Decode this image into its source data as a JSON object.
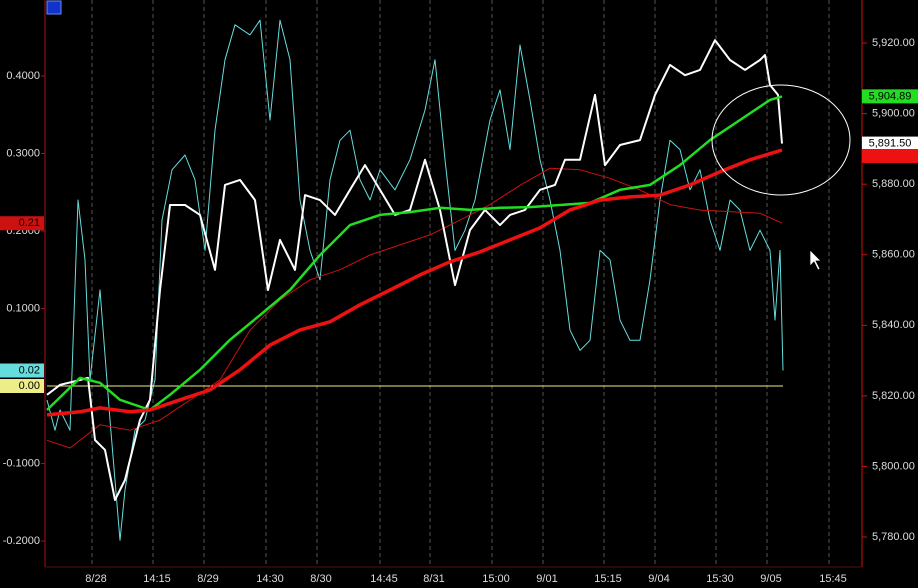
{
  "chart_data": {
    "type": "line",
    "xlim": [
      0,
      817
    ],
    "ylim": [
      -0.2335,
      0.498
    ],
    "y2lim": [
      5771.5,
      5932.2
    ],
    "grid": true,
    "xticks": [
      {
        "value": 47,
        "label": "8/28"
      },
      {
        "value": 108,
        "label": "14:15"
      },
      {
        "value": 159,
        "label": "8/29"
      },
      {
        "value": 221,
        "label": "14:30"
      },
      {
        "value": 272,
        "label": "8/30"
      },
      {
        "value": 335,
        "label": "14:45"
      },
      {
        "value": 385,
        "label": "8/31"
      },
      {
        "value": 447,
        "label": "15:00"
      },
      {
        "value": 498,
        "label": "9/01"
      },
      {
        "value": 559,
        "label": "15:15"
      },
      {
        "value": 610,
        "label": "9/04"
      },
      {
        "value": 671,
        "label": "15:30"
      },
      {
        "value": 722,
        "label": "9/05"
      },
      {
        "value": 784,
        "label": "15:45"
      }
    ],
    "yticks": [
      {
        "value": -0.2,
        "label": "-0.2000"
      },
      {
        "value": -0.1,
        "label": "-0.1000"
      },
      {
        "value": 0.1,
        "label": "0.1000"
      },
      {
        "value": 0.2,
        "label": "0.2000"
      },
      {
        "value": 0.3,
        "label": "0.3000"
      },
      {
        "value": 0.4,
        "label": "0.4000"
      }
    ],
    "y2ticks": [
      {
        "value": 5780,
        "label": "5,780.00"
      },
      {
        "value": 5800,
        "label": "5,800.00"
      },
      {
        "value": 5820,
        "label": "5,820.00"
      },
      {
        "value": 5840,
        "label": "5,840.00"
      },
      {
        "value": 5860,
        "label": "5,860.00"
      },
      {
        "value": 5880,
        "label": "5,880.00"
      },
      {
        "value": 5900,
        "label": "5,900.00"
      },
      {
        "value": 5920,
        "label": "5,920.00"
      }
    ],
    "series": [
      {
        "color": "#66dddd",
        "width": 1,
        "end_label": "0.02",
        "x": [
          2,
          10,
          15,
          25,
          33,
          40,
          45,
          55,
          65,
          75,
          80,
          90,
          100,
          110,
          117,
          127,
          140,
          150,
          160,
          170,
          180,
          190,
          205,
          215,
          225,
          235,
          245,
          255,
          265,
          275,
          285,
          295,
          305,
          315,
          325,
          335,
          350,
          365,
          380,
          390,
          400,
          410,
          420,
          430,
          445,
          455,
          465,
          475,
          485,
          495,
          505,
          515,
          525,
          535,
          545,
          555,
          565,
          575,
          585,
          595,
          605,
          615,
          625,
          635,
          645,
          655,
          665,
          675,
          685,
          695,
          705,
          715,
          725,
          730,
          735,
          738
        ],
        "values": [
          -0.018,
          -0.057,
          -0.031,
          -0.057,
          0.24,
          0.163,
          0.008,
          0.124,
          -0.044,
          -0.199,
          -0.134,
          -0.057,
          -0.044,
          0.008,
          0.214,
          0.279,
          0.298,
          0.266,
          0.175,
          0.33,
          0.421,
          0.466,
          0.453,
          0.472,
          0.343,
          0.472,
          0.421,
          0.24,
          0.175,
          0.137,
          0.266,
          0.317,
          0.33,
          0.266,
          0.24,
          0.279,
          0.253,
          0.292,
          0.356,
          0.421,
          0.292,
          0.175,
          0.201,
          0.24,
          0.343,
          0.382,
          0.305,
          0.44,
          0.369,
          0.292,
          0.24,
          0.175,
          0.072,
          0.046,
          0.059,
          0.175,
          0.163,
          0.085,
          0.059,
          0.059,
          0.137,
          0.24,
          0.317,
          0.305,
          0.253,
          0.279,
          0.214,
          0.175,
          0.24,
          0.227,
          0.175,
          0.201,
          0.175,
          0.085,
          0.175,
          0.02
        ]
      },
      {
        "color": "#eeee88",
        "width": 1,
        "end_label": "0.00",
        "x": [
          2,
          738
        ],
        "values": [
          0,
          0
        ]
      },
      {
        "color": "#cc1111",
        "width": 1,
        "end_label": "0.21",
        "x": [
          2,
          25,
          55,
          85,
          115,
          145,
          175,
          205,
          235,
          265,
          295,
          325,
          355,
          385,
          415,
          445,
          475,
          505,
          535,
          565,
          595,
          625,
          655,
          685,
          715,
          737
        ],
        "values": [
          -0.07,
          -0.08,
          -0.05,
          -0.057,
          -0.044,
          -0.018,
          0.008,
          0.072,
          0.111,
          0.137,
          0.15,
          0.169,
          0.182,
          0.195,
          0.214,
          0.234,
          0.259,
          0.281,
          0.279,
          0.268,
          0.253,
          0.234,
          0.227,
          0.225,
          0.223,
          0.21
        ]
      },
      {
        "color": "#ffffff",
        "width": 2,
        "axis": "y2",
        "end_label": "5,891.50",
        "x": [
          2,
          15,
          35,
          43,
          50,
          60,
          70,
          80,
          95,
          105,
          115,
          125,
          140,
          155,
          170,
          180,
          195,
          210,
          223,
          235,
          250,
          260,
          275,
          290,
          305,
          320,
          335,
          350,
          365,
          380,
          395,
          410,
          425,
          440,
          455,
          465,
          480,
          495,
          510,
          520,
          535,
          550,
          560,
          575,
          595,
          610,
          625,
          640,
          655,
          670,
          685,
          700,
          715,
          720,
          725,
          733,
          737
        ],
        "values": [
          5820.3,
          5823.1,
          5824.5,
          5825.1,
          5807.5,
          5804.7,
          5790.5,
          5796.2,
          5813.2,
          5818.9,
          5850.0,
          5874.1,
          5874.1,
          5871.3,
          5855.7,
          5879.8,
          5881.2,
          5875.5,
          5850.0,
          5864.2,
          5855.7,
          5876.9,
          5875.5,
          5871.3,
          5878.4,
          5885.4,
          5878.4,
          5871.3,
          5872.7,
          5886.9,
          5872.7,
          5851.4,
          5867.0,
          5872.7,
          5868.4,
          5871.3,
          5872.7,
          5878.4,
          5879.8,
          5886.9,
          5886.9,
          5905.3,
          5885.4,
          5891.1,
          5892.5,
          5905.3,
          5913.8,
          5910.9,
          5912.4,
          5920.8,
          5915.2,
          5912.4,
          5915.2,
          5916.6,
          5908.1,
          5905.3,
          5891.5
        ]
      },
      {
        "color": "#22dd22",
        "width": 2.5,
        "axis": "y2",
        "end_label": "5,904.89",
        "x": [
          2,
          35,
          55,
          75,
          105,
          125,
          155,
          185,
          215,
          245,
          275,
          305,
          335,
          365,
          395,
          425,
          455,
          485,
          515,
          545,
          575,
          605,
          635,
          665,
          695,
          725,
          737
        ],
        "values": [
          5816.0,
          5825.1,
          5823.7,
          5818.9,
          5816.0,
          5820.3,
          5827.4,
          5835.9,
          5842.9,
          5850.0,
          5859.9,
          5868.4,
          5871.3,
          5872.1,
          5873.3,
          5872.7,
          5873.3,
          5873.5,
          5874.1,
          5874.7,
          5878.4,
          5879.8,
          5885.4,
          5892.5,
          5898.2,
          5903.9,
          5904.89
        ]
      },
      {
        "color": "#ee1111",
        "width": 3.5,
        "axis": "y2",
        "x": [
          2,
          35,
          55,
          85,
          105,
          135,
          165,
          195,
          225,
          255,
          285,
          315,
          345,
          375,
          405,
          435,
          465,
          495,
          525,
          555,
          585,
          615,
          645,
          675,
          705,
          737
        ],
        "values": [
          5814.6,
          5815.5,
          5816.6,
          5815.5,
          5816.0,
          5818.9,
          5821.7,
          5827.4,
          5834.4,
          5838.7,
          5841.0,
          5845.8,
          5850.0,
          5854.3,
          5858.0,
          5860.8,
          5864.2,
          5867.6,
          5872.7,
          5875.5,
          5876.4,
          5876.9,
          5879.8,
          5883.5,
          5886.9,
          5889.7
        ]
      }
    ]
  }
}
